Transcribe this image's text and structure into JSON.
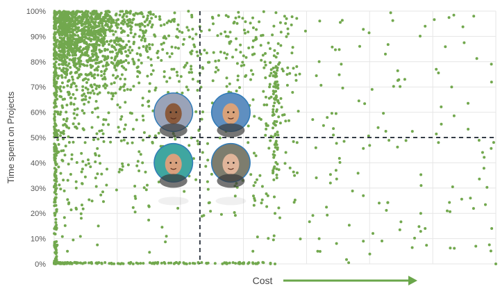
{
  "chart_data": {
    "type": "scatter",
    "title": "",
    "xlabel": "Cost",
    "ylabel": "Time spent on Projects",
    "xlim": [
      0,
      100
    ],
    "ylim": [
      0,
      100
    ],
    "grid": true,
    "y_ticks": [
      {
        "value": 0,
        "label": "0%"
      },
      {
        "value": 10,
        "label": "10%"
      },
      {
        "value": 20,
        "label": "20%"
      },
      {
        "value": 30,
        "label": "30%"
      },
      {
        "value": 40,
        "label": "40%"
      },
      {
        "value": 50,
        "label": "50%"
      },
      {
        "value": 60,
        "label": "60%"
      },
      {
        "value": 70,
        "label": "70%"
      },
      {
        "value": 80,
        "label": "80%"
      },
      {
        "value": 90,
        "label": "90%"
      },
      {
        "value": 100,
        "label": "100%"
      }
    ],
    "x_ticks_labeled": false,
    "divider_lines": {
      "x": 33,
      "y": 50
    },
    "point_color": "#72a84e",
    "divider_color": "#333a45",
    "cost_arrow_color": "#6aa64a",
    "point_count_estimate": 3000,
    "density_note": "points densest at low cost / high time (upper left), thinning toward high cost; heavy cluster along 0% and along cost≈0",
    "representative_points": [
      {
        "x": 2,
        "y": 98
      },
      {
        "x": 5,
        "y": 95
      },
      {
        "x": 8,
        "y": 92
      },
      {
        "x": 12,
        "y": 88
      },
      {
        "x": 15,
        "y": 85
      },
      {
        "x": 18,
        "y": 80
      },
      {
        "x": 10,
        "y": 78
      },
      {
        "x": 22,
        "y": 75
      },
      {
        "x": 25,
        "y": 90
      },
      {
        "x": 30,
        "y": 70
      },
      {
        "x": 36,
        "y": 95
      },
      {
        "x": 40,
        "y": 88
      },
      {
        "x": 45,
        "y": 75
      },
      {
        "x": 50,
        "y": 65
      },
      {
        "x": 55,
        "y": 48
      },
      {
        "x": 60,
        "y": 80
      },
      {
        "x": 65,
        "y": 79
      },
      {
        "x": 75,
        "y": 83
      },
      {
        "x": 84,
        "y": 94
      },
      {
        "x": 95,
        "y": 98
      },
      {
        "x": 99,
        "y": 79
      },
      {
        "x": 90,
        "y": 70
      },
      {
        "x": 89,
        "y": 21
      },
      {
        "x": 83,
        "y": 20
      },
      {
        "x": 70,
        "y": 27
      },
      {
        "x": 70,
        "y": 9
      },
      {
        "x": 84,
        "y": 14
      },
      {
        "x": 100,
        "y": 0
      },
      {
        "x": 5,
        "y": 30
      },
      {
        "x": 10,
        "y": 15
      },
      {
        "x": 20,
        "y": 40
      },
      {
        "x": 28,
        "y": 22
      },
      {
        "x": 40,
        "y": 35
      },
      {
        "x": 50,
        "y": 20
      },
      {
        "x": 60,
        "y": 10
      },
      {
        "x": 45,
        "y": 5
      },
      {
        "x": 3,
        "y": 5
      },
      {
        "x": 15,
        "y": 0
      },
      {
        "x": 30,
        "y": 0
      },
      {
        "x": 50,
        "y": 0
      }
    ],
    "quadrant_avatars": [
      {
        "name": "avatar-top-left",
        "x": 27,
        "y": 60,
        "skin": "#8a5a3c",
        "bg": "#9aa3b8",
        "ring": "#2e7ab8"
      },
      {
        "name": "avatar-top-right",
        "x": 40,
        "y": 60,
        "skin": "#d9a27a",
        "bg": "#5f8fc0",
        "ring": "#2e7ab8"
      },
      {
        "name": "avatar-bottom-left",
        "x": 27,
        "y": 40,
        "skin": "#d8a07d",
        "bg": "#3fa6a0",
        "ring": "#2e7ab8"
      },
      {
        "name": "avatar-bottom-right",
        "x": 40,
        "y": 40,
        "skin": "#e0b59a",
        "bg": "#7d7d6e",
        "ring": "#2e7ab8"
      }
    ]
  }
}
